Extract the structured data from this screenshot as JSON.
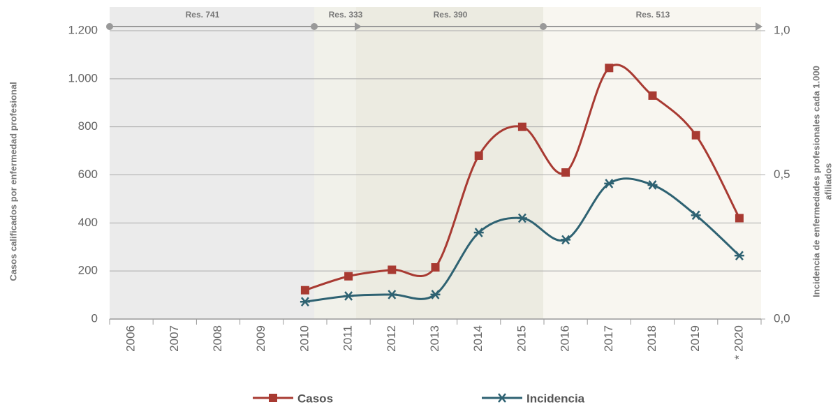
{
  "chart_data": {
    "type": "line",
    "y_label": "Casos calificados por enfermedad profesional",
    "y2_label": [
      "Incidencia de enfermedades profesionales cada 1.000",
      "afiliados"
    ],
    "periods": [
      "Res. 741",
      "Res. 333",
      "Res. 390",
      "Res. 513"
    ],
    "categories": [
      "2006",
      "2007",
      "2008",
      "2009",
      "2010",
      "2011",
      "2012",
      "2013",
      "2014",
      "2015",
      "2016",
      "2017",
      "2018",
      "2019",
      "* 2020"
    ],
    "series": [
      {
        "name": "Casos",
        "color": "#a83a32",
        "marker": "square",
        "values": [
          null,
          null,
          null,
          null,
          120,
          178,
          205,
          215,
          680,
          800,
          610,
          1045,
          930,
          765,
          420
        ]
      },
      {
        "name": "Incidencia",
        "color": "#2e6272",
        "marker": "asterisk",
        "axis": "y2",
        "values": [
          null,
          null,
          null,
          null,
          0.06,
          0.08,
          0.085,
          0.085,
          0.3,
          0.35,
          0.275,
          0.47,
          0.465,
          0.36,
          0.22
        ]
      }
    ],
    "ylim": [
      0,
      1200
    ],
    "yticks": [
      0,
      200,
      400,
      600,
      800,
      {
        "value": 1000,
        "label": "1.000"
      },
      {
        "value": 1200,
        "label": "1.200"
      }
    ],
    "y2lim": [
      0,
      1
    ],
    "y2ticks": [
      {
        "value": 0,
        "label": "0,0"
      },
      {
        "value": 0.5,
        "label": "0,5"
      },
      {
        "value": 1,
        "label": "1,0"
      }
    ],
    "grid": true
  }
}
